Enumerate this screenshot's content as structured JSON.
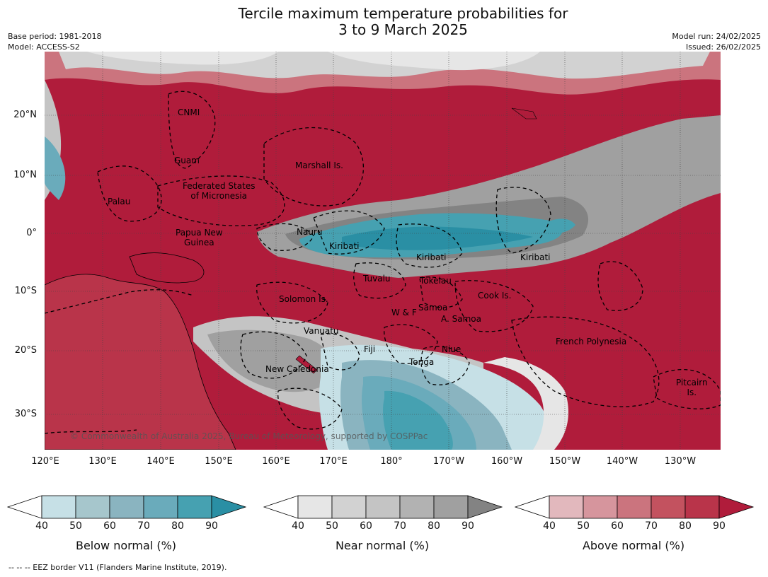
{
  "title_line1": "Tercile maximum temperature probabilities for",
  "title_line2": "3 to 9 March 2025",
  "meta": {
    "base_period": "Base period: 1981-2018",
    "model": "Model: ACCESS-S2",
    "model_run": "Model run: 24/02/2025",
    "issued": "Issued: 26/02/2025"
  },
  "lat_labels": [
    "20°N",
    "10°N",
    "0°",
    "10°S",
    "20°S",
    "30°S"
  ],
  "lon_labels": [
    "120°E",
    "130°E",
    "140°E",
    "150°E",
    "160°E",
    "170°E",
    "180°",
    "170°W",
    "160°W",
    "150°W",
    "140°W",
    "130°W"
  ],
  "regions": [
    "CNMI",
    "Guam",
    "Marshall Is.",
    "Federated States\nof Micronesia",
    "Palau",
    "Papua New\nGuinea",
    "Nauru",
    "Kiribati",
    "Kiribati",
    "Kiribati",
    "Tuvalu",
    "Tokelau",
    "Solomon Is.",
    "Cook Is.",
    "Samoa",
    "W & F",
    "A. Samoa",
    "Vanuatu",
    "Fiji",
    "Niue",
    "French Polynesia",
    "Tonga",
    "New Caledonia",
    "Pitcairn\nIs."
  ],
  "copyright": "© Commonwealth of Australia 2025, Bureau of Meteorology, supported by COSPPac",
  "colorbars": [
    {
      "label": "Below normal (%)",
      "ticks": [
        "40",
        "50",
        "60",
        "70",
        "80",
        "90"
      ],
      "colors": [
        "#ffffff",
        "#c6e0e6",
        "#a6c6cc",
        "#8ab4c0",
        "#6aabbb",
        "#46a1b1",
        "#2a8fa4"
      ]
    },
    {
      "label": "Near normal (%)",
      "ticks": [
        "40",
        "50",
        "60",
        "70",
        "80",
        "90"
      ],
      "colors": [
        "#ffffff",
        "#e6e6e6",
        "#d2d2d2",
        "#c4c4c4",
        "#b2b2b2",
        "#a0a0a0",
        "#838383"
      ]
    },
    {
      "label": "Above normal (%)",
      "ticks": [
        "40",
        "50",
        "60",
        "70",
        "80",
        "90"
      ],
      "colors": [
        "#ffffff",
        "#e2b8bd",
        "#d6959d",
        "#cb747e",
        "#c3525f",
        "#b9344a",
        "#b01c3b"
      ]
    }
  ],
  "footer": "--  --  -- EEZ border V11 (Flanders Marine Institute, 2019)."
}
